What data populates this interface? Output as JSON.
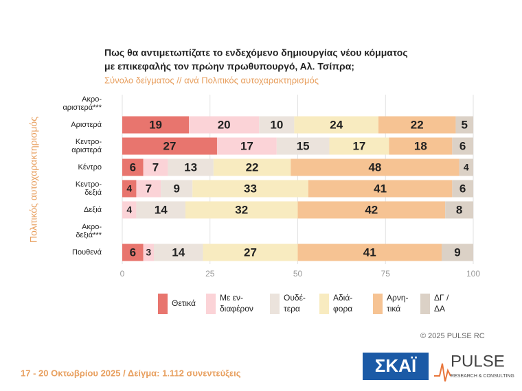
{
  "chart_data": {
    "type": "stacked-bar-horizontal",
    "title": [
      "Πως θα αντιμετωπίζατε το ενδεχόμενο δημιουργίας νέου κόμματος",
      "με επικεφαλής τον πρώην πρωθυπουργό, Αλ. Τσίπρα;"
    ],
    "subtitle": "Σύνολο δείγματος // ανά Πολιτικός αυτοχαρακτηρισμός",
    "y_label": "Πολιτικός αυτοχαρακτηρισμός",
    "categories": [
      [
        "Ακρο-",
        "αριστερά***"
      ],
      [
        "Αριστερά"
      ],
      [
        "Κεντρο-",
        "αριστερά"
      ],
      [
        "Κέντρο"
      ],
      [
        "Κεντρο-",
        "δεξιά"
      ],
      [
        "Δεξιά"
      ],
      [
        "Ακρο-",
        "δεξιά***"
      ],
      [
        "Πουθενά"
      ]
    ],
    "series": [
      {
        "name": [
          "Θετικά"
        ],
        "color": "#e8756e",
        "values": [
          null,
          19,
          27,
          6,
          4,
          0,
          null,
          6
        ]
      },
      {
        "name": [
          "Με εν-",
          "διαφέρον"
        ],
        "color": "#fbd3d7",
        "values": [
          null,
          20,
          17,
          7,
          7,
          4,
          null,
          3
        ]
      },
      {
        "name": [
          "Ουδέ-",
          "τερα"
        ],
        "color": "#ebe3dc",
        "values": [
          null,
          10,
          15,
          13,
          9,
          14,
          null,
          14
        ]
      },
      {
        "name": [
          "Αδιά-",
          "φορα"
        ],
        "color": "#f8ebc0",
        "values": [
          null,
          24,
          17,
          22,
          33,
          32,
          null,
          27
        ]
      },
      {
        "name": [
          "Αρνη-",
          "τικά"
        ],
        "color": "#f6c393",
        "values": [
          null,
          22,
          18,
          48,
          41,
          42,
          null,
          41
        ]
      },
      {
        "name": [
          "ΔΓ /",
          "ΔΑ"
        ],
        "color": "#dbd1c6",
        "values": [
          null,
          5,
          6,
          4,
          6,
          8,
          null,
          9
        ]
      }
    ],
    "xlim": [
      0,
      100
    ],
    "xticks": [
      0,
      25,
      50,
      75,
      100
    ],
    "grid": true,
    "legend": "bottom",
    "footer": "17 - 20 Οκτωβρίου 2025  /  Δείγμα:  1.112 συνεντεύξεις",
    "copyright": "© 2025 PULSE RC",
    "logos": {
      "skai": "ΣΚΑΪ",
      "pulse": "PULSE",
      "pulse_sub": "RESEARCH & CONSULTING"
    }
  }
}
